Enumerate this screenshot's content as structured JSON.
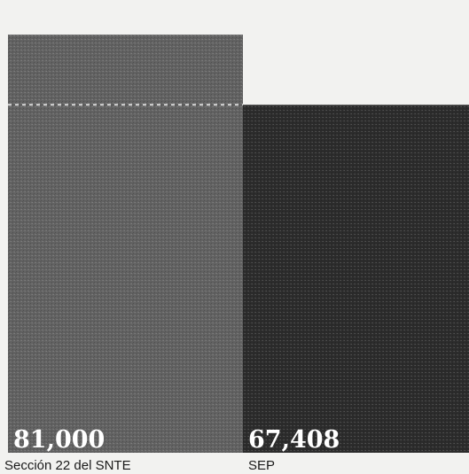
{
  "chart_data": {
    "type": "bar",
    "categories": [
      "Sección 22 del SNTE",
      "SEP"
    ],
    "values": [
      81000,
      67408
    ],
    "value_labels": [
      "81,000",
      "67,408"
    ],
    "ylim": [
      0,
      86000
    ],
    "reference_line": 67408,
    "grid": false,
    "colors": {
      "bar_1": "#626262",
      "bar_2": "#2c2c2c",
      "background": "#f2f2f0",
      "reference_line": "#d9d9d9",
      "value_text": "#ffffff",
      "label_text": "#1a1a1a"
    }
  }
}
